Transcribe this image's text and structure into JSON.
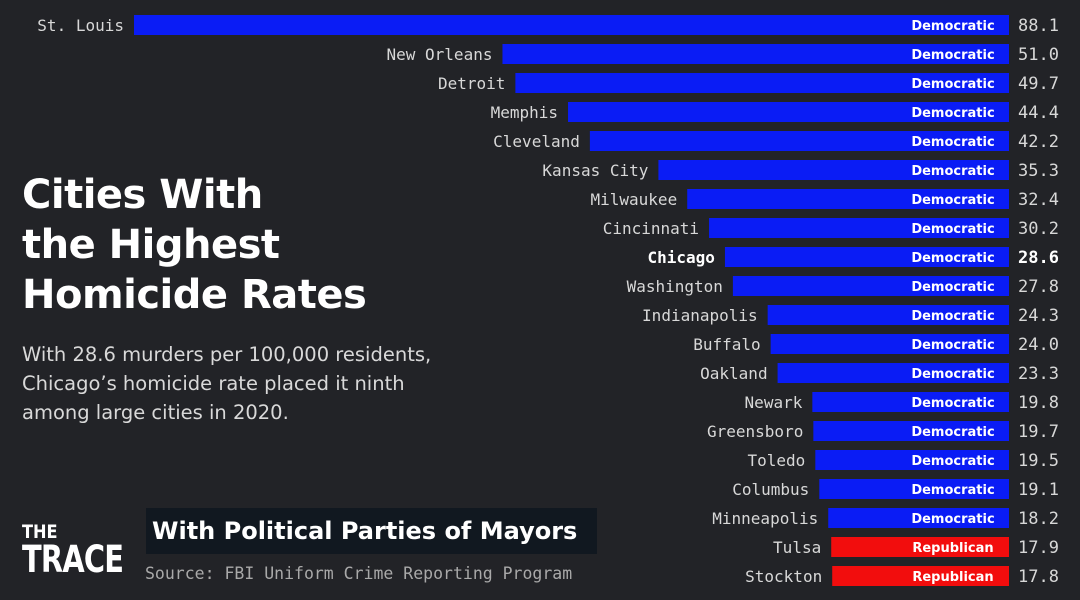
{
  "headline": {
    "line1": "Cities With",
    "line2": "the Highest",
    "line3": "Homicide Rates"
  },
  "description": {
    "line1": "With 28.6 murders per 100,000 residents,",
    "line2": "Chicago’s homicide rate placed it ninth",
    "line3": "among large cities in 2020."
  },
  "subtitle": "With Political Parties of Mayors",
  "source": "Source: FBI Uniform Crime Reporting Program",
  "brand": {
    "line1": "THE",
    "line2": "TRACE"
  },
  "colors": {
    "background": "#222327",
    "Democratic": "#0a1cf5",
    "Republican": "#f20d0d",
    "label_text": "#d8d8d8",
    "highlight_text": "#ffffff"
  },
  "chart_data": {
    "type": "bar",
    "orientation": "horizontal",
    "title": "",
    "xlabel": "",
    "ylabel": "",
    "xlim": [
      0,
      88.1
    ],
    "highlight": "Chicago",
    "categories": [
      "St. Louis",
      "New Orleans",
      "Detroit",
      "Memphis",
      "Cleveland",
      "Kansas City",
      "Milwaukee",
      "Cincinnati",
      "Chicago",
      "Washington",
      "Indianapolis",
      "Buffalo",
      "Oakland",
      "Newark",
      "Greensboro",
      "Toledo",
      "Columbus",
      "Minneapolis",
      "Tulsa",
      "Stockton"
    ],
    "values": [
      88.1,
      51.0,
      49.7,
      44.4,
      42.2,
      35.3,
      32.4,
      30.2,
      28.6,
      27.8,
      24.3,
      24.0,
      23.3,
      19.8,
      19.7,
      19.5,
      19.1,
      18.2,
      17.9,
      17.8
    ],
    "value_labels": [
      "88.1",
      "51.0",
      "49.7",
      "44.4",
      "42.2",
      "35.3",
      "32.4",
      "30.2",
      "28.6",
      "27.8",
      "24.3",
      "24.0",
      "23.3",
      "19.8",
      "19.7",
      "19.5",
      "19.1",
      "18.2",
      "17.9",
      "17.8"
    ],
    "party": [
      "Democratic",
      "Democratic",
      "Democratic",
      "Democratic",
      "Democratic",
      "Democratic",
      "Democratic",
      "Democratic",
      "Democratic",
      "Democratic",
      "Democratic",
      "Democratic",
      "Democratic",
      "Democratic",
      "Democratic",
      "Democratic",
      "Democratic",
      "Democratic",
      "Republican",
      "Republican"
    ]
  }
}
